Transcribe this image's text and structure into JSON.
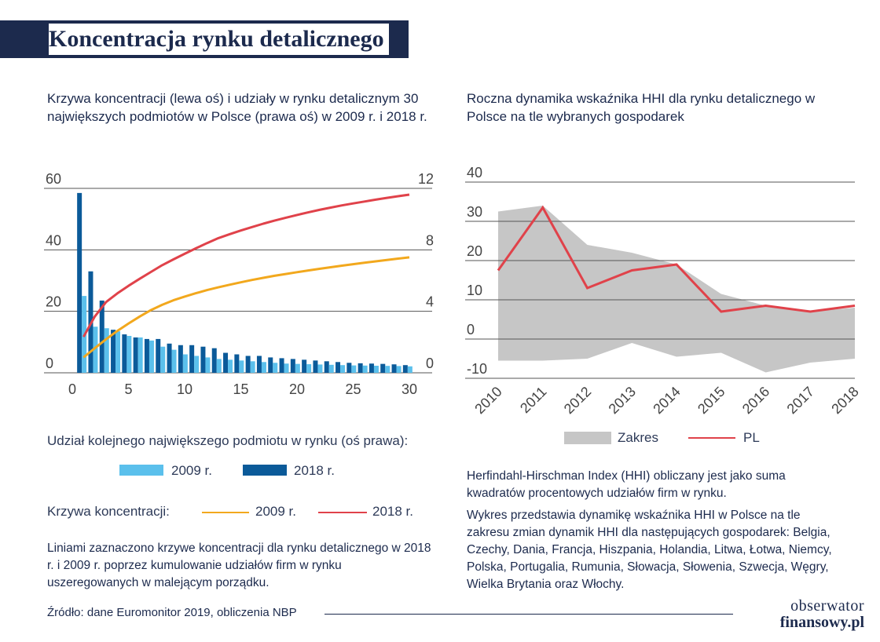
{
  "page": {
    "title_initial": "K",
    "title_rest": "oncentracja rynku detalicznego",
    "left_subtitle": "Krzywa koncentracji (lewa oś) i udziały w rynku detalicznym 30 największych podmiotów w Polsce (prawa oś) w 2009 r. i 2018 r.",
    "right_subtitle": "Roczna dynamika wskaźnika HHI dla rynku detalicznego w Polsce na tle wybranych gospodarek",
    "legend_share_heading": "Udział kolejnego największego podmiotu w rynku (oś prawa):",
    "legend_share_2009": "2009 r.",
    "legend_share_2018": "2018 r.",
    "legend_curve_heading": "Krzywa koncentracji:",
    "legend_curve_2009": "2009 r.",
    "legend_curve_2018": "2018 r.",
    "left_note": "Liniami zaznaczono krzywe koncentracji dla rynku detalicznego w 2018 r. i 2009 r. poprzez kumulowanie udziałów firm w rynku uszeregowanych w malejącym porządku.",
    "right_note_1": "Herfindahl-Hirschman Index (HHI) obliczany jest jako suma kwadratów procentowych udziałów firm w rynku.",
    "right_note_2": "Wykres przedstawia dynamikę wskaźnika HHI w Polsce na tle zakresu zmian dynamik HHI dla następujących gospodarek: Belgia, Czechy, Dania, Francja, Hiszpania, Holandia, Litwa, Łotwa, Niemcy, Polska, Portugalia, Rumunia, Słowacja, Słowenia, Szwecja, Węgry, Wielka Brytania oraz Włochy.",
    "legend_range": "Zakres",
    "legend_pl": "PL",
    "source": "Źródło: dane Euromonitor 2019, obliczenia NBP",
    "logo_line1": "obserwator",
    "logo_line2": "finansowy.pl"
  },
  "colors": {
    "navy": "#1c2a4d",
    "bar_2009": "#5bc0ec",
    "bar_2018": "#0b5a99",
    "curve_2009": "#f2a81d",
    "curve_2018": "#e0424a",
    "range_fill": "#c6c6c6",
    "pl_line": "#e0424a",
    "grid": "#4a4a4a"
  },
  "chart_data": [
    {
      "type": "bar",
      "subtype": "bar+line (dual axis)",
      "x_ticks": [
        0,
        5,
        10,
        15,
        20,
        25,
        30
      ],
      "left_axis": {
        "ticks": [
          0,
          20,
          40,
          60
        ],
        "ylim": [
          0,
          60
        ]
      },
      "right_axis": {
        "ticks": [
          0,
          4,
          8,
          12
        ],
        "ylim": [
          0,
          12
        ]
      },
      "x": [
        1,
        2,
        3,
        4,
        5,
        6,
        7,
        8,
        9,
        10,
        11,
        12,
        13,
        14,
        15,
        16,
        17,
        18,
        19,
        20,
        21,
        22,
        23,
        24,
        25,
        26,
        27,
        28,
        29,
        30
      ],
      "bars": [
        {
          "name": "2009 r.",
          "axis": "right",
          "values": [
            5.0,
            3.0,
            2.9,
            2.7,
            2.4,
            2.3,
            2.1,
            1.7,
            1.5,
            1.2,
            1.1,
            1.0,
            0.9,
            0.85,
            0.8,
            0.75,
            0.7,
            0.65,
            0.6,
            0.58,
            0.56,
            0.54,
            0.52,
            0.5,
            0.48,
            0.47,
            0.46,
            0.45,
            0.44,
            0.42
          ]
        },
        {
          "name": "2018 r.",
          "axis": "right",
          "values": [
            11.7,
            6.6,
            4.7,
            2.8,
            2.5,
            2.3,
            2.2,
            2.2,
            1.9,
            1.8,
            1.8,
            1.7,
            1.6,
            1.3,
            1.2,
            1.1,
            1.1,
            1.0,
            0.95,
            0.9,
            0.85,
            0.8,
            0.75,
            0.7,
            0.65,
            0.62,
            0.6,
            0.58,
            0.55,
            0.5
          ]
        }
      ],
      "lines": [
        {
          "name": "2009 r.",
          "axis": "left",
          "values": [
            5.0,
            8.0,
            10.9,
            13.6,
            16.0,
            18.3,
            20.4,
            22.1,
            23.6,
            24.8,
            25.9,
            26.9,
            27.8,
            28.65,
            29.45,
            30.2,
            30.9,
            31.55,
            32.15,
            32.73,
            33.29,
            33.83,
            34.35,
            34.85,
            35.33,
            35.8,
            36.26,
            36.71,
            37.15,
            37.57
          ]
        },
        {
          "name": "2018 r.",
          "axis": "left",
          "values": [
            11.7,
            18.3,
            23.0,
            25.8,
            28.3,
            30.6,
            32.8,
            35.0,
            36.9,
            38.7,
            40.5,
            42.2,
            43.8,
            45.1,
            46.3,
            47.4,
            48.5,
            49.5,
            50.45,
            51.35,
            52.2,
            53.0,
            53.75,
            54.45,
            55.1,
            55.72,
            56.32,
            56.9,
            57.45,
            57.95
          ]
        }
      ]
    },
    {
      "type": "area",
      "categories": [
        "2010",
        "2011",
        "2012",
        "2013",
        "2014",
        "2015",
        "2016",
        "2017",
        "2018"
      ],
      "ylim": [
        -10,
        40
      ],
      "y_ticks": [
        -10,
        0,
        10,
        20,
        30,
        40
      ],
      "series": [
        {
          "name": "Zakres",
          "kind": "range",
          "upper": [
            32.5,
            34,
            24,
            22,
            19,
            11.5,
            8.5,
            7,
            8
          ],
          "lower": [
            -5.5,
            -5.5,
            -5,
            -1,
            -4.5,
            -3.5,
            -8.5,
            -6,
            -5
          ]
        },
        {
          "name": "PL",
          "kind": "line",
          "values": [
            17.5,
            33.5,
            13,
            17.5,
            19,
            7,
            8.5,
            7,
            8.5
          ]
        }
      ]
    }
  ]
}
